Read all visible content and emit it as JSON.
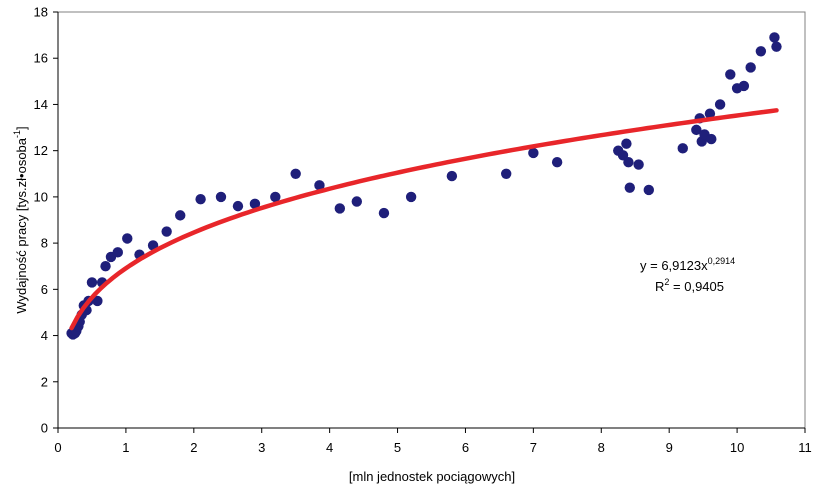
{
  "chart_data": {
    "type": "scatter",
    "title": "",
    "xlabel": "[mln jednostek pociągowych]",
    "ylabel": {
      "main": "Wydajność pracy [tys.zł•osoba",
      "exponent": "-1",
      "close": "]"
    },
    "xlim": [
      0,
      11
    ],
    "ylim": [
      0,
      18
    ],
    "xticks": [
      0,
      1,
      2,
      3,
      4,
      5,
      6,
      7,
      8,
      9,
      10,
      11
    ],
    "yticks": [
      0,
      2,
      4,
      6,
      8,
      10,
      12,
      14,
      16,
      18
    ],
    "grid": false,
    "legend": "none",
    "colors": {
      "points": "#1f1f7a",
      "trendline": "#e8262a",
      "axes": "#000000",
      "plot_border": "#808080"
    },
    "series": [
      {
        "type": "scatter",
        "points": [
          [
            0.2,
            4.1
          ],
          [
            0.22,
            4.05
          ],
          [
            0.25,
            4.1
          ],
          [
            0.27,
            4.2
          ],
          [
            0.3,
            4.4
          ],
          [
            0.32,
            4.6
          ],
          [
            0.35,
            4.9
          ],
          [
            0.38,
            5.3
          ],
          [
            0.42,
            5.1
          ],
          [
            0.45,
            5.5
          ],
          [
            0.5,
            6.3
          ],
          [
            0.58,
            5.5
          ],
          [
            0.65,
            6.3
          ],
          [
            0.7,
            7.0
          ],
          [
            0.78,
            7.4
          ],
          [
            0.88,
            7.6
          ],
          [
            1.02,
            8.2
          ],
          [
            1.2,
            7.5
          ],
          [
            1.4,
            7.9
          ],
          [
            1.6,
            8.5
          ],
          [
            1.8,
            9.2
          ],
          [
            2.1,
            9.9
          ],
          [
            2.4,
            10.0
          ],
          [
            2.65,
            9.6
          ],
          [
            2.9,
            9.7
          ],
          [
            3.2,
            10.0
          ],
          [
            3.5,
            11.0
          ],
          [
            3.85,
            10.5
          ],
          [
            4.15,
            9.5
          ],
          [
            4.4,
            9.8
          ],
          [
            4.8,
            9.3
          ],
          [
            5.2,
            10.0
          ],
          [
            5.8,
            10.9
          ],
          [
            6.6,
            11.0
          ],
          [
            7.0,
            11.9
          ],
          [
            7.35,
            11.5
          ],
          [
            8.25,
            12.0
          ],
          [
            8.32,
            11.8
          ],
          [
            8.37,
            12.3
          ],
          [
            8.4,
            11.5
          ],
          [
            8.42,
            10.4
          ],
          [
            8.55,
            11.4
          ],
          [
            8.7,
            10.3
          ],
          [
            9.2,
            12.1
          ],
          [
            9.4,
            12.9
          ],
          [
            9.45,
            13.4
          ],
          [
            9.48,
            12.4
          ],
          [
            9.52,
            12.7
          ],
          [
            9.6,
            13.6
          ],
          [
            9.62,
            12.5
          ],
          [
            9.75,
            14.0
          ],
          [
            9.9,
            15.3
          ],
          [
            10.0,
            14.7
          ],
          [
            10.1,
            14.8
          ],
          [
            10.2,
            15.6
          ],
          [
            10.35,
            16.3
          ],
          [
            10.55,
            16.9
          ],
          [
            10.58,
            16.5
          ]
        ]
      },
      {
        "type": "trendline",
        "model": "power",
        "a": 6.9123,
        "b": 0.2914,
        "x_range": [
          0.2,
          10.58
        ]
      }
    ],
    "annotations": {
      "equation_prefix": "y = 6,9123x",
      "equation_exponent": "0,2914",
      "r2_prefix": "R",
      "r2_exponent": "2",
      "r2_value": " = 0,9405"
    }
  }
}
